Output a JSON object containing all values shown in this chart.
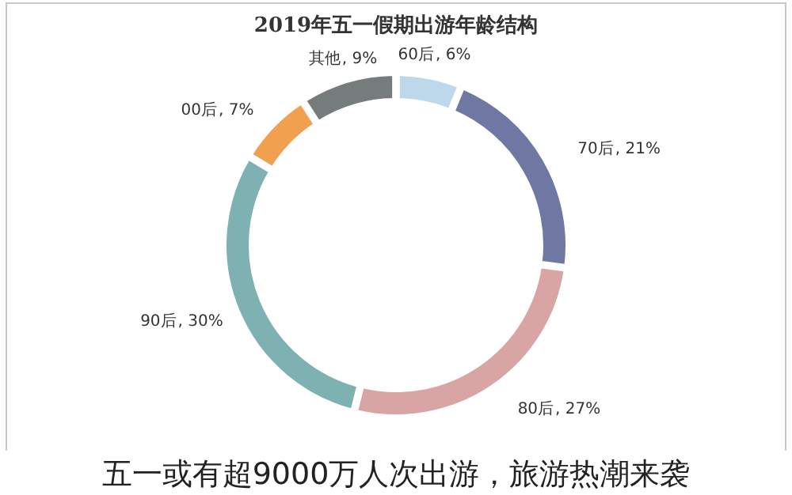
{
  "chart_data": {
    "type": "donut",
    "title": "2019年五一假期出游年龄结构",
    "categories": [
      "60后",
      "70后",
      "80后",
      "90后",
      "00后",
      "其他"
    ],
    "values": [
      6,
      21,
      27,
      30,
      7,
      9
    ],
    "colors": [
      "#bcd8ea",
      "#6e78a2",
      "#d8a4a4",
      "#7eb2b2",
      "#f0a04e",
      "#767b7b"
    ],
    "value_labels": [
      ", 6%",
      ", 21%",
      ", 27%",
      ", 30%",
      ", 7%",
      ", 9%"
    ],
    "annotations": [
      "五一或有超9000万人次出游，旅游热潮来袭"
    ]
  }
}
